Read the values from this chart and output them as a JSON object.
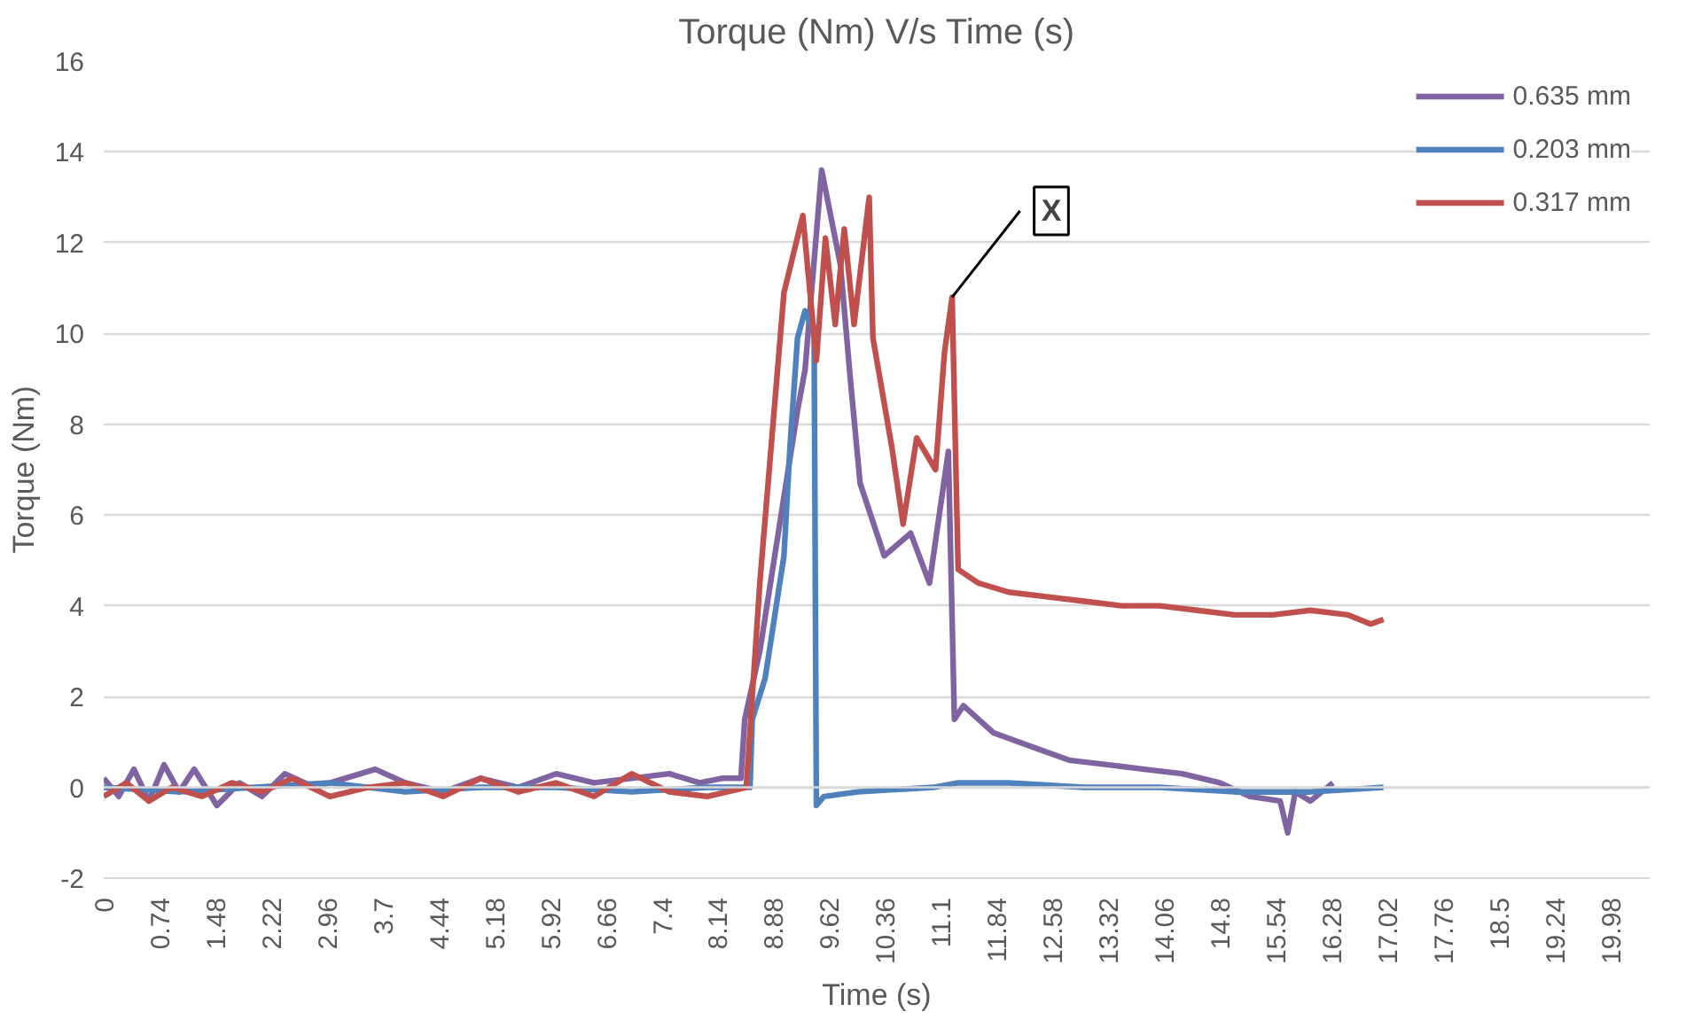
{
  "chart_data": {
    "type": "line",
    "title": "Torque (Nm) V/s Time (s)",
    "xlabel": "Time (s)",
    "ylabel": "Torque (Nm)",
    "xlim": [
      0,
      20.5
    ],
    "ylim": [
      -2,
      16
    ],
    "xticks": [
      0,
      0.74,
      1.48,
      2.22,
      2.96,
      3.7,
      4.44,
      5.18,
      5.92,
      6.66,
      7.4,
      8.14,
      8.88,
      9.62,
      10.36,
      11.1,
      11.84,
      12.58,
      13.32,
      14.06,
      14.8,
      15.54,
      16.28,
      17.02,
      17.76,
      18.5,
      19.24,
      19.98
    ],
    "yticks": [
      -2,
      0,
      2,
      4,
      6,
      8,
      10,
      12,
      14,
      16
    ],
    "grid": "y",
    "legend": "top right",
    "line_style": "solid",
    "marker": "none",
    "annotations": [
      {
        "text": "X",
        "x": 11.25,
        "y": 10.8
      }
    ],
    "series": [
      {
        "name": "0.635 mm",
        "color": "#8064a2",
        "x": [
          0,
          0.2,
          0.4,
          0.6,
          0.8,
          1.0,
          1.2,
          1.5,
          1.8,
          2.1,
          2.4,
          2.8,
          3.2,
          3.6,
          4.0,
          4.5,
          5.0,
          5.5,
          6.0,
          6.5,
          7.0,
          7.5,
          7.9,
          8.2,
          8.45,
          8.5,
          8.7,
          9.02,
          9.2,
          9.3,
          9.52,
          9.77,
          9.9,
          10.03,
          10.35,
          10.7,
          10.95,
          11.2,
          11.28,
          11.4,
          11.8,
          12.3,
          12.8,
          13.3,
          13.8,
          14.3,
          14.8,
          15.2,
          15.6,
          15.7,
          15.8,
          16.0,
          16.3
        ],
        "values": [
          0.2,
          -0.2,
          0.4,
          -0.3,
          0.5,
          -0.1,
          0.4,
          -0.4,
          0.1,
          -0.2,
          0.3,
          0.0,
          0.2,
          0.4,
          0.1,
          -0.1,
          0.2,
          0.0,
          0.3,
          0.1,
          0.2,
          0.3,
          0.1,
          0.2,
          0.2,
          1.5,
          3.0,
          6.4,
          8.3,
          9.2,
          13.6,
          11.5,
          9.0,
          6.7,
          5.1,
          5.6,
          4.5,
          7.4,
          1.5,
          1.8,
          1.2,
          0.9,
          0.6,
          0.5,
          0.4,
          0.3,
          0.1,
          -0.2,
          -0.3,
          -1.0,
          -0.1,
          -0.3,
          0.1
        ]
      },
      {
        "name": "0.203 mm",
        "color": "#4f81bd",
        "x": [
          0,
          1.0,
          2.0,
          3.0,
          4.0,
          5.0,
          6.0,
          7.0,
          8.0,
          8.57,
          8.6,
          8.77,
          9.02,
          9.1,
          9.2,
          9.3,
          9.42,
          9.45,
          9.55,
          10.0,
          11.0,
          11.33,
          12.0,
          13.0,
          14.0,
          15.0,
          16.0,
          16.97
        ],
        "values": [
          0.0,
          -0.1,
          0.0,
          0.1,
          -0.1,
          0.0,
          0.0,
          -0.1,
          0.0,
          0.0,
          1.5,
          2.4,
          5.1,
          7.5,
          9.9,
          10.5,
          10.0,
          -0.4,
          -0.2,
          -0.1,
          0.0,
          0.1,
          0.1,
          0.0,
          0.0,
          -0.1,
          -0.1,
          0.0
        ]
      },
      {
        "name": "0.317 mm",
        "color": "#c0504d",
        "x": [
          0,
          0.3,
          0.6,
          0.9,
          1.3,
          1.7,
          2.1,
          2.5,
          3.0,
          3.5,
          4.0,
          4.5,
          5.0,
          5.5,
          6.0,
          6.5,
          7.0,
          7.5,
          8.0,
          8.52,
          8.7,
          9.02,
          9.27,
          9.45,
          9.57,
          9.7,
          9.82,
          9.95,
          10.15,
          10.2,
          10.45,
          10.6,
          10.78,
          11.03,
          11.15,
          11.25,
          11.33,
          11.6,
          12.0,
          12.5,
          13.0,
          13.5,
          14.0,
          14.5,
          15.0,
          15.5,
          16.0,
          16.5,
          16.8,
          16.97
        ],
        "values": [
          -0.2,
          0.1,
          -0.3,
          0.0,
          -0.2,
          0.1,
          -0.1,
          0.2,
          -0.2,
          0.0,
          0.1,
          -0.2,
          0.2,
          -0.1,
          0.1,
          -0.2,
          0.3,
          -0.1,
          -0.2,
          0.0,
          4.5,
          10.9,
          12.6,
          9.4,
          12.1,
          10.2,
          12.3,
          10.2,
          13.0,
          9.9,
          7.5,
          5.8,
          7.7,
          7.0,
          9.6,
          10.8,
          4.8,
          4.5,
          4.3,
          4.2,
          4.1,
          4.0,
          4.0,
          3.9,
          3.8,
          3.8,
          3.9,
          3.8,
          3.6,
          3.7
        ]
      }
    ]
  }
}
